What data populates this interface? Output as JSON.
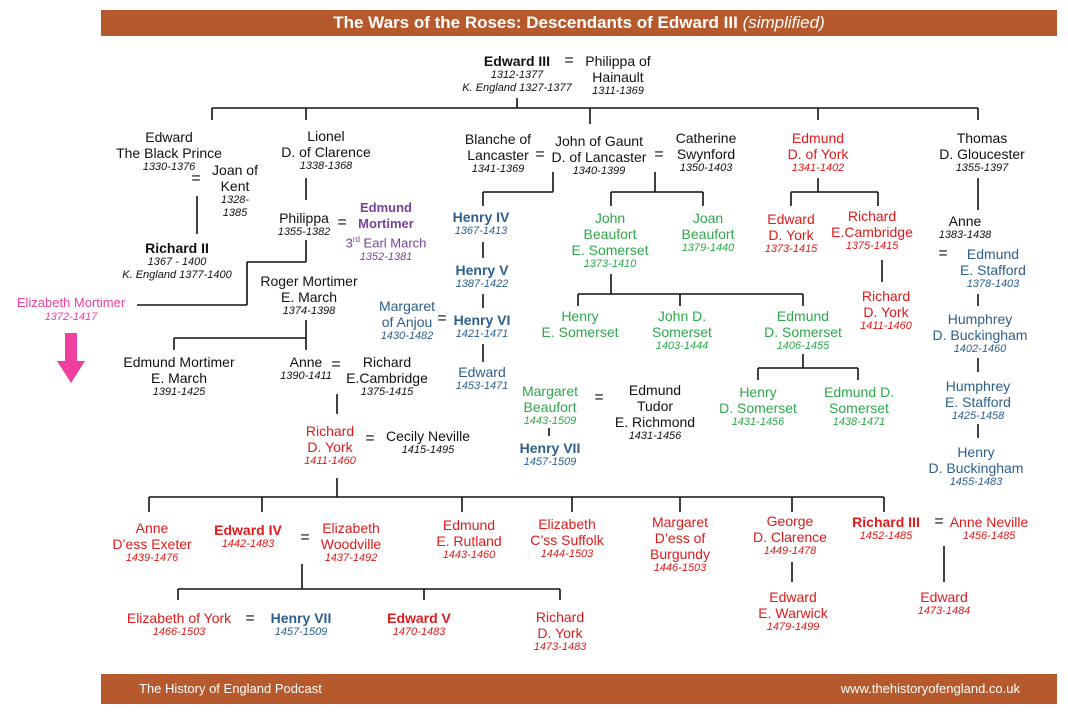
{
  "title": {
    "main": "The Wars of the Roses: Descendants of Edward III",
    "sub": "(simplified)"
  },
  "footer": {
    "left": "The History of England Podcast",
    "right": "www.thehistoryofengland.co.uk"
  },
  "colors": {
    "banner": "#b65a2e",
    "york": "#e01a1a",
    "lancaster": "#2d5f8e",
    "beaufort": "#2ea84a",
    "mortimer_march": "#7b3f9b",
    "elizabeth_mortimer": "#ef3f9f",
    "arrow": "#ef3f9f"
  },
  "people": {
    "edward3": {
      "name": "Edward III",
      "dates": "1312-1377",
      "reign": "K. England 1327-1377"
    },
    "philippa": {
      "name1": "Philippa of",
      "name2": "Hainault",
      "dates": "1311-1369"
    },
    "black_prince": {
      "name1": "Edward",
      "name2": "The Black Prince",
      "dates": "1330-1376"
    },
    "joan_kent": {
      "name1": "Joan of",
      "name2": "Kent",
      "dates1": "1328-",
      "dates2": "1385"
    },
    "richard2": {
      "name": "Richard II",
      "dates": "1367 - 1400",
      "reign": "K. England 1377-1400"
    },
    "lionel": {
      "name1": "Lionel",
      "name2": "D. of Clarence",
      "dates": "1338-1368"
    },
    "philippa_clarence": {
      "name": "Philippa",
      "dates": "1355-1382"
    },
    "edmund_mortimer3": {
      "name1": "Edmund",
      "name2": "Mortimer",
      "ordinal": "3",
      "ordinal_suffix": "rd",
      "title": " Earl March",
      "dates": "1352-1381"
    },
    "roger_mortimer": {
      "name1": "Roger Mortimer",
      "name2": "E. March",
      "dates": "1374-1398"
    },
    "elizabeth_mortimer": {
      "name": "Elizabeth Mortimer",
      "dates": "1372-1417"
    },
    "edmund_mortimer_march": {
      "name1": "Edmund Mortimer",
      "name2": "E. March",
      "dates": "1391-1425"
    },
    "anne_mortimer": {
      "name": "Anne",
      "dates": "1390-1411"
    },
    "richard_cambridge1": {
      "name1": "Richard",
      "name2": "E.Cambridge",
      "dates": "1375-1415"
    },
    "richard_york": {
      "name1": "Richard",
      "name2": "D. York",
      "dates": "1411-1460"
    },
    "cecily": {
      "name": "Cecily Neville",
      "dates": "1415-1495"
    },
    "blanche": {
      "name1": "Blanche of",
      "name2": "Lancaster",
      "dates": "1341-1369"
    },
    "gaunt": {
      "name1": "John of Gaunt",
      "name2": "D. of Lancaster",
      "dates": "1340-1399"
    },
    "catherine": {
      "name1": "Catherine",
      "name2": "Swynford",
      "dates": "1350-1403"
    },
    "henry4": {
      "name": "Henry IV",
      "dates": "1367-1413"
    },
    "henry5": {
      "name": "Henry V",
      "dates": "1387-1422"
    },
    "margaret_anjou": {
      "name1": "Margaret",
      "name2": "of Anjou",
      "dates": "1430-1482"
    },
    "henry6": {
      "name": "Henry VI",
      "dates": "1421-1471"
    },
    "edward_lanc": {
      "name": "Edward",
      "dates": "1453-1471"
    },
    "john_beaufort": {
      "name1": "John",
      "name2": "Beaufort",
      "name3": "E. Somerset",
      "dates": "1373-1410"
    },
    "joan_beaufort": {
      "name1": "Joan",
      "name2": "Beaufort",
      "dates": "1379-1440"
    },
    "henry_somerset1": {
      "name1": "Henry",
      "name2": "E. Somerset"
    },
    "john_somerset": {
      "name1": "John  D.",
      "name2": "Somerset",
      "dates": "1403-1444"
    },
    "edmund_somerset": {
      "name1": "Edmund",
      "name2": "D. Somerset",
      "dates": "1406-1455"
    },
    "margaret_beaufort": {
      "name1": "Margaret",
      "name2": "Beaufort",
      "dates": "1443-1509"
    },
    "edmund_tudor": {
      "name1": "Edmund",
      "name2": "Tudor",
      "name3": "E. Richmond",
      "dates": "1431-1456"
    },
    "henry7a": {
      "name": "Henry VII",
      "dates": "1457-1509"
    },
    "henry_somerset2": {
      "name1": "Henry",
      "name2": "D. Somerset",
      "dates": "1431-1456"
    },
    "edmund_d_somerset": {
      "name1": "Edmund  D.",
      "name2": "Somerset",
      "dates": "1438-1471"
    },
    "edmund_york": {
      "name1": "Edmund",
      "name2": "D. of York",
      "dates": "1341-1402"
    },
    "edward_york": {
      "name1": "Edward",
      "name2": "D. York",
      "dates": "1373-1415"
    },
    "richard_cambridge2": {
      "name1": "Richard",
      "name2": "E.Cambridge",
      "dates": "1375-1415"
    },
    "richard_york2": {
      "name1": "Richard",
      "name2": "D. York",
      "dates": "1411-1460"
    },
    "thomas": {
      "name1": "Thomas",
      "name2": "D. Gloucester",
      "dates": "1355-1397"
    },
    "anne_gloucester": {
      "name": "Anne",
      "dates": "1383-1438"
    },
    "edmund_stafford": {
      "name1": "Edmund",
      "name2": "E. Stafford",
      "dates": "1378-1403"
    },
    "humphrey_buckingham": {
      "name1": "Humphrey",
      "name2": "D. Buckingham",
      "dates": "1402-1460"
    },
    "humphrey_stafford": {
      "name1": "Humphrey",
      "name2": "E. Stafford",
      "dates": "1425-1458"
    },
    "henry_buckingham": {
      "name1": "Henry",
      "name2": "D. Buckingham",
      "dates": "1455-1483"
    },
    "anne_exeter": {
      "name1": "Anne",
      "name2": "D’ess Exeter",
      "dates": "1439-1476"
    },
    "edward4": {
      "name": "Edward IV",
      "dates": "1442-1483"
    },
    "elizabeth_woodville": {
      "name1": "Elizabeth",
      "name2": "Woodville",
      "dates": "1437-1492"
    },
    "edmund_rutland": {
      "name1": "Edmund",
      "name2": "E. Rutland",
      "dates": "1443-1460"
    },
    "elizabeth_suffolk": {
      "name1": "Elizabeth",
      "name2": "C’ss Suffolk",
      "dates": "1444-1503"
    },
    "margaret_burgundy": {
      "name1": "Margaret",
      "name2": "D’ess of",
      "name3": "Burgundy",
      "dates": "1446-1503"
    },
    "george_clarence": {
      "name1": "George",
      "name2": "D. Clarence",
      "dates": "1449-1478"
    },
    "richard3": {
      "name": "Richard III",
      "dates": "1452-1485"
    },
    "anne_neville": {
      "name": "Anne Neville",
      "dates": "1456-1485"
    },
    "elizabeth_york": {
      "name": "Elizabeth of York",
      "dates": "1466-1503"
    },
    "henry7b": {
      "name": "Henry VII",
      "dates": "1457-1509"
    },
    "edward5": {
      "name": "Edward V",
      "dates": "1470-1483"
    },
    "richard_york3": {
      "name1": "Richard",
      "name2": "D. York",
      "dates": "1473-1483"
    },
    "edward_warwick": {
      "name1": "Edward",
      "name2": "E. Warwick",
      "dates": "1479-1499"
    },
    "edward_son_r3": {
      "name": "Edward",
      "dates": "1473-1484"
    }
  },
  "marriage_symbol": "="
}
